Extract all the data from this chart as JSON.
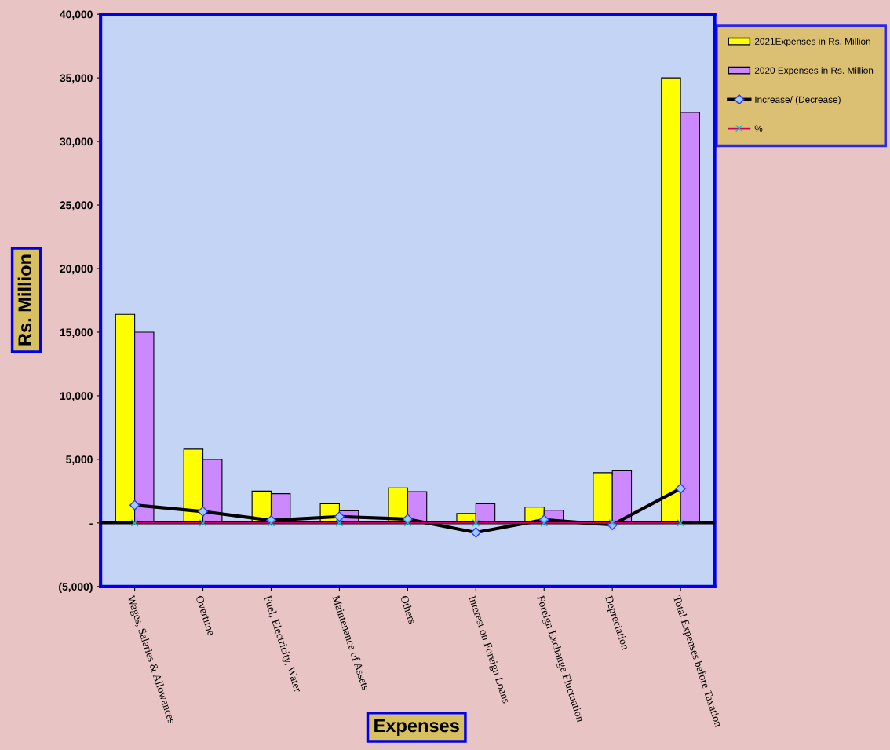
{
  "chart_data": {
    "type": "bar",
    "xlabel": "Expenses",
    "ylabel": "Rs. Million",
    "categories": [
      "Wages, Salaries & Allowances",
      "Overtime",
      "Fuel, Electricity, Water",
      "Maintenance of Assets",
      "Others",
      "Interest on Foreign Loans",
      "Foreign Exchange Fluctuation",
      "Depreciation",
      "Total Expenses before Taxation"
    ],
    "series": [
      {
        "name": "2021Expenses in Rs. Million",
        "color": "#ffff00",
        "values": [
          16400,
          5800,
          2500,
          1500,
          2750,
          750,
          1250,
          3950,
          35000
        ]
      },
      {
        "name": "2020 Expenses in Rs. Million",
        "color": "#cc88ff",
        "values": [
          15000,
          5000,
          2300,
          950,
          2450,
          1500,
          1000,
          4100,
          32300
        ]
      },
      {
        "name": "Increase/ (Decrease)",
        "type": "line",
        "color": "#000000",
        "marker": "diamond",
        "values": [
          1400,
          900,
          200,
          500,
          300,
          -750,
          250,
          -150,
          2700
        ]
      },
      {
        "name": "%",
        "type": "line",
        "color": "#cc0066",
        "marker": "cross",
        "values": [
          0,
          0,
          0,
          0,
          0,
          0,
          0,
          0,
          0
        ]
      }
    ],
    "ylim": [
      -5000,
      40000
    ],
    "yticks": [
      {
        "value": -5000,
        "label": "(5,000)"
      },
      {
        "value": 0,
        "label": "-"
      },
      {
        "value": 5000,
        "label": "5,000"
      },
      {
        "value": 10000,
        "label": "10,000"
      },
      {
        "value": 15000,
        "label": "15,000"
      },
      {
        "value": 20000,
        "label": "20,000"
      },
      {
        "value": 25000,
        "label": "25,000"
      },
      {
        "value": 30000,
        "label": "30,000"
      },
      {
        "value": 35000,
        "label": "35,000"
      },
      {
        "value": 40000,
        "label": "40,000"
      }
    ],
    "grid": false,
    "legend": "right"
  }
}
